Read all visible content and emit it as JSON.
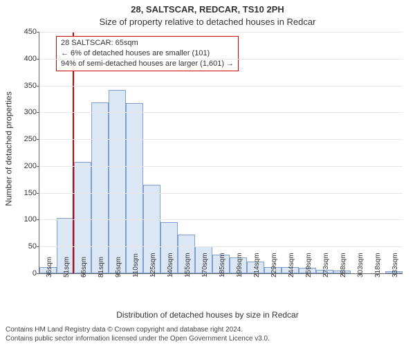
{
  "titles": {
    "line1": "28, SALTSCAR, REDCAR, TS10 2PH",
    "line2": "Size of property relative to detached houses in Redcar"
  },
  "axes": {
    "ylabel": "Number of detached properties",
    "xlabel": "Distribution of detached houses by size in Redcar",
    "label_fontsize": 12
  },
  "chart": {
    "type": "histogram",
    "ylim": [
      0,
      450
    ],
    "yticks": [
      0,
      50,
      100,
      150,
      200,
      250,
      300,
      350,
      400,
      450
    ],
    "grid_color": "#e6e6e6",
    "axis_color": "#666666",
    "background_color": "#ffffff",
    "bar_fill": "#dbe7f5",
    "bar_border": "#7f9ecf",
    "bar_width_ratio": 1.0,
    "categories": [
      "36sqm",
      "51sqm",
      "66sqm",
      "81sqm",
      "95sqm",
      "110sqm",
      "125sqm",
      "140sqm",
      "155sqm",
      "170sqm",
      "185sqm",
      "199sqm",
      "214sqm",
      "229sqm",
      "244sqm",
      "259sqm",
      "273sqm",
      "288sqm",
      "303sqm",
      "318sqm",
      "333sqm"
    ],
    "values": [
      12,
      103,
      208,
      318,
      342,
      317,
      165,
      95,
      72,
      50,
      35,
      30,
      22,
      12,
      12,
      10,
      7,
      5,
      0,
      0,
      4
    ]
  },
  "reference_line": {
    "value_sqm": 65,
    "color": "#cc0000"
  },
  "annotation": {
    "border_color": "#cc0000",
    "line1": "28 SALTSCAR: 65sqm",
    "line2": "← 6% of detached houses are smaller (101)",
    "line3": "94% of semi-detached houses are larger (1,601) →",
    "fontsize": 11
  },
  "footer": {
    "line1": "Contains HM Land Registry data © Crown copyright and database right 2024.",
    "line2": "Contains public sector information licensed under the Open Government Licence v3.0."
  }
}
